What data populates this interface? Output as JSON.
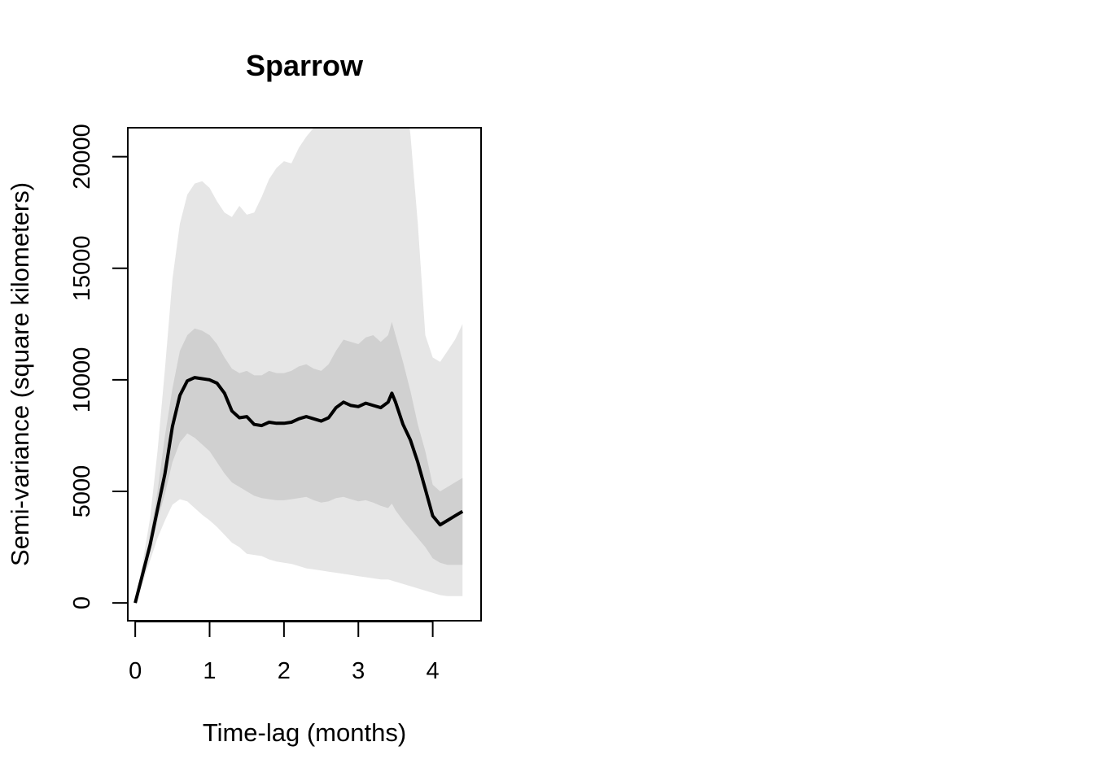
{
  "chart_data": {
    "type": "line",
    "title": "Sparrow",
    "xlabel": "Time-lag (months)",
    "ylabel": "Semi-variance (square kilometers)",
    "xlim": [
      -0.1,
      4.65
    ],
    "ylim": [
      -800,
      21300
    ],
    "xticks": [
      0,
      1,
      2,
      3,
      4
    ],
    "yticks": [
      0,
      5000,
      10000,
      15000,
      20000
    ],
    "grid": false,
    "colors": {
      "outer_band": "#e6e6e6",
      "inner_band": "#d0d0d0",
      "line": "#000000"
    },
    "series": [
      {
        "x": [
          0,
          0.1,
          0.2,
          0.3,
          0.4,
          0.5,
          0.6,
          0.7,
          0.8,
          0.9,
          1.0,
          1.1,
          1.2,
          1.3,
          1.4,
          1.5,
          1.6,
          1.7,
          1.8,
          1.9,
          2.0,
          2.1,
          2.2,
          2.3,
          2.4,
          2.5,
          2.6,
          2.7,
          2.8,
          2.9,
          3.0,
          3.1,
          3.2,
          3.3,
          3.4,
          3.45,
          3.5,
          3.6,
          3.7,
          3.8,
          3.9,
          4.0,
          4.1,
          4.2,
          4.3,
          4.4
        ],
        "values": [
          0,
          1300,
          2600,
          4200,
          5800,
          7900,
          9300,
          9950,
          10100,
          10050,
          10000,
          9850,
          9400,
          8600,
          8300,
          8350,
          8000,
          7950,
          8100,
          8050,
          8050,
          8100,
          8250,
          8350,
          8250,
          8150,
          8300,
          8750,
          9000,
          8850,
          8800,
          8950,
          8850,
          8750,
          9000,
          9400,
          9000,
          8000,
          7300,
          6300,
          5100,
          3900,
          3500,
          3700,
          3900,
          4100
        ]
      }
    ],
    "bands": [
      {
        "level": "outer",
        "x": [
          0,
          0.1,
          0.2,
          0.3,
          0.4,
          0.5,
          0.6,
          0.7,
          0.8,
          0.9,
          1.0,
          1.1,
          1.2,
          1.3,
          1.4,
          1.5,
          1.6,
          1.7,
          1.8,
          1.9,
          2.0,
          2.1,
          2.2,
          2.3,
          2.4,
          2.5,
          2.6,
          2.7,
          2.8,
          2.9,
          3.0,
          3.1,
          3.2,
          3.3,
          3.4,
          3.5,
          3.6,
          3.7,
          3.8,
          3.9,
          4.0,
          4.1,
          4.2,
          4.3,
          4.4
        ],
        "upper": [
          0,
          1800,
          3800,
          6800,
          10500,
          14500,
          17000,
          18300,
          18800,
          18900,
          18600,
          18000,
          17500,
          17300,
          17800,
          17400,
          17500,
          18200,
          19000,
          19500,
          19800,
          19700,
          20400,
          20900,
          21300,
          21800,
          22500,
          23200,
          24000,
          24500,
          24800,
          25000,
          25200,
          25300,
          25200,
          24800,
          23800,
          21000,
          17000,
          12000,
          11000,
          10800,
          11300,
          11800,
          12500
        ],
        "lower": [
          0,
          900,
          1900,
          2900,
          3700,
          4400,
          4650,
          4550,
          4250,
          3950,
          3700,
          3400,
          3050,
          2700,
          2500,
          2200,
          2150,
          2100,
          1950,
          1850,
          1800,
          1750,
          1650,
          1550,
          1500,
          1450,
          1400,
          1350,
          1300,
          1250,
          1200,
          1150,
          1100,
          1050,
          1050,
          950,
          850,
          750,
          650,
          550,
          450,
          350,
          300,
          300,
          300
        ]
      },
      {
        "level": "inner",
        "x": [
          0,
          0.1,
          0.2,
          0.3,
          0.4,
          0.5,
          0.6,
          0.7,
          0.8,
          0.9,
          1.0,
          1.1,
          1.2,
          1.3,
          1.4,
          1.5,
          1.6,
          1.7,
          1.8,
          1.9,
          2.0,
          2.1,
          2.2,
          2.3,
          2.4,
          2.5,
          2.6,
          2.7,
          2.8,
          2.9,
          3.0,
          3.1,
          3.2,
          3.3,
          3.4,
          3.45,
          3.5,
          3.6,
          3.7,
          3.8,
          3.9,
          4.0,
          4.1,
          4.2,
          4.3,
          4.4
        ],
        "upper": [
          0,
          1500,
          3000,
          5000,
          7500,
          9600,
          11300,
          12000,
          12300,
          12200,
          12000,
          11600,
          11000,
          10500,
          10300,
          10400,
          10200,
          10200,
          10400,
          10300,
          10300,
          10400,
          10600,
          10700,
          10500,
          10400,
          10700,
          11300,
          11800,
          11700,
          11600,
          11900,
          12000,
          11700,
          12000,
          12600,
          12000,
          10800,
          9500,
          8000,
          6800,
          5300,
          5000,
          5200,
          5400,
          5600
        ],
        "lower": [
          0,
          1100,
          2300,
          3700,
          4900,
          6300,
          7200,
          7600,
          7400,
          7100,
          6800,
          6300,
          5800,
          5400,
          5200,
          5000,
          4800,
          4700,
          4650,
          4600,
          4600,
          4650,
          4700,
          4750,
          4600,
          4500,
          4550,
          4700,
          4750,
          4650,
          4550,
          4600,
          4500,
          4350,
          4250,
          4450,
          4150,
          3700,
          3300,
          2900,
          2500,
          2000,
          1800,
          1700,
          1700,
          1700
        ]
      }
    ]
  }
}
